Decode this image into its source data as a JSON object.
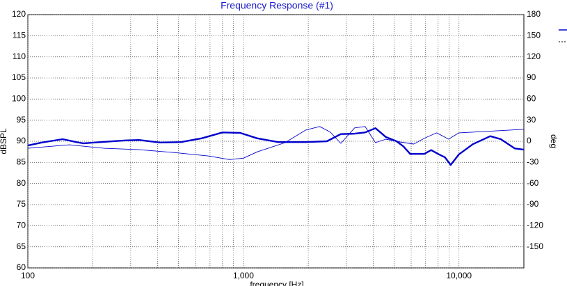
{
  "chart_data": {
    "type": "line",
    "title": "Frequency Response (#1)",
    "x_label": "frequency [Hz]",
    "y_label": "dBSPL",
    "y2_label": "deg",
    "xscale": "log",
    "xlim": [
      100,
      20000
    ],
    "xticks": [
      {
        "value": 100,
        "label": "100"
      },
      {
        "value": 1000,
        "label": "1,000"
      },
      {
        "value": 10000,
        "label": "10,000"
      }
    ],
    "x_minor_ticks": [
      200,
      300,
      400,
      500,
      600,
      700,
      800,
      900,
      2000,
      3000,
      4000,
      5000,
      6000,
      7000,
      8000,
      9000
    ],
    "ylim": [
      60,
      120
    ],
    "yticks": [
      60,
      65,
      70,
      75,
      80,
      85,
      90,
      95,
      100,
      105,
      110,
      115,
      120
    ],
    "y2lim": [
      -180,
      180
    ],
    "y2ticks": [
      -150,
      -120,
      -90,
      -60,
      -30,
      0,
      30,
      60,
      90,
      120,
      150,
      180
    ],
    "grid": true,
    "legend_position": "right",
    "legend": [
      {
        "color": "#0000cc",
        "dash": false
      },
      {
        "color": "#000000",
        "dash": true
      }
    ],
    "series": [
      {
        "color": "#0000cc",
        "width": 2.4,
        "axis": "y",
        "x": [
          100,
          116,
          145,
          168,
          181,
          218,
          283,
          328,
          410,
          513,
          640,
          800,
          964,
          1160,
          1450,
          1950,
          2440,
          2830,
          3280,
          3670,
          4100,
          4580,
          5130,
          5520,
          5940,
          6900,
          7430,
          8000,
          8610,
          9150,
          10000,
          11600,
          13970,
          15630,
          18130,
          20000
        ],
        "values": [
          89.0,
          89.7,
          90.5,
          89.8,
          89.5,
          89.8,
          90.2,
          90.3,
          89.7,
          89.8,
          90.7,
          92.1,
          92.0,
          90.7,
          89.8,
          89.8,
          90.0,
          91.7,
          91.8,
          92.1,
          93.1,
          91.0,
          90.0,
          88.8,
          87.0,
          87.0,
          87.9,
          87.0,
          86.2,
          84.4,
          86.9,
          89.3,
          91.2,
          90.5,
          88.3,
          88.0
        ]
      },
      {
        "color": "#0000cc",
        "width": 0.9,
        "axis": "y2",
        "x": [
          100,
          156,
          226,
          328,
          476,
          690,
          862,
          1000,
          1160,
          1560,
          1950,
          2260,
          2530,
          2830,
          3280,
          3670,
          4100,
          4580,
          5320,
          6170,
          7000,
          7880,
          8950,
          10000,
          13460,
          20000
        ],
        "values": [
          -10,
          -5,
          -10,
          -12,
          -16,
          -21,
          -26,
          -24,
          -15,
          -2,
          16,
          21,
          13,
          -3,
          19,
          21,
          -2,
          3,
          -1,
          -4,
          5,
          12,
          3,
          12,
          14,
          17
        ]
      }
    ]
  }
}
